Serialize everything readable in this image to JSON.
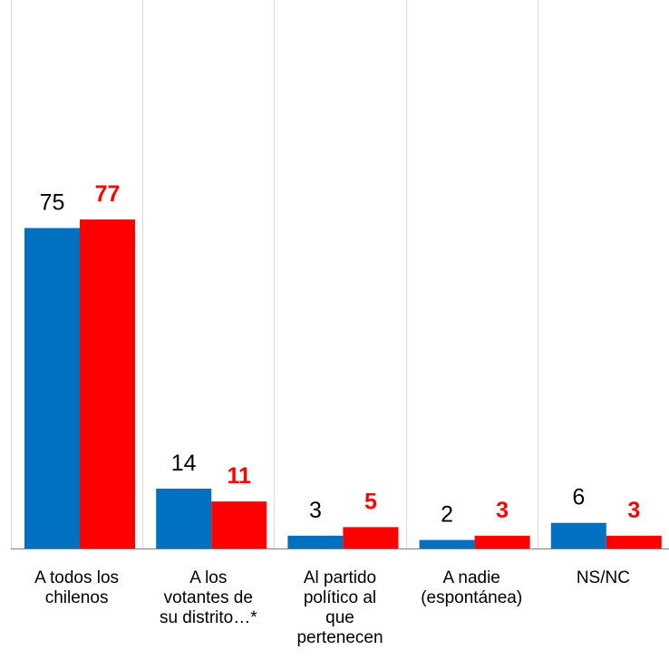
{
  "chart_data": {
    "type": "bar",
    "title": "",
    "xlabel": "",
    "ylabel": "",
    "ylim": [
      0,
      100
    ],
    "grid": "vertical separators between categories",
    "legend": "none",
    "categories": [
      [
        "A todos los",
        "chilenos"
      ],
      [
        "A los",
        "votantes de",
        "su distrito…*"
      ],
      [
        "Al partido",
        "político al",
        "que",
        "pertenecen"
      ],
      [
        "A nadie",
        "(espontánea)"
      ],
      [
        "NS/NC"
      ]
    ],
    "series": [
      {
        "values": [
          75,
          14,
          3,
          2,
          6
        ],
        "color": "#0070c0"
      },
      {
        "values": [
          77,
          11,
          5,
          3,
          3
        ],
        "color": "#ff0000"
      }
    ]
  }
}
